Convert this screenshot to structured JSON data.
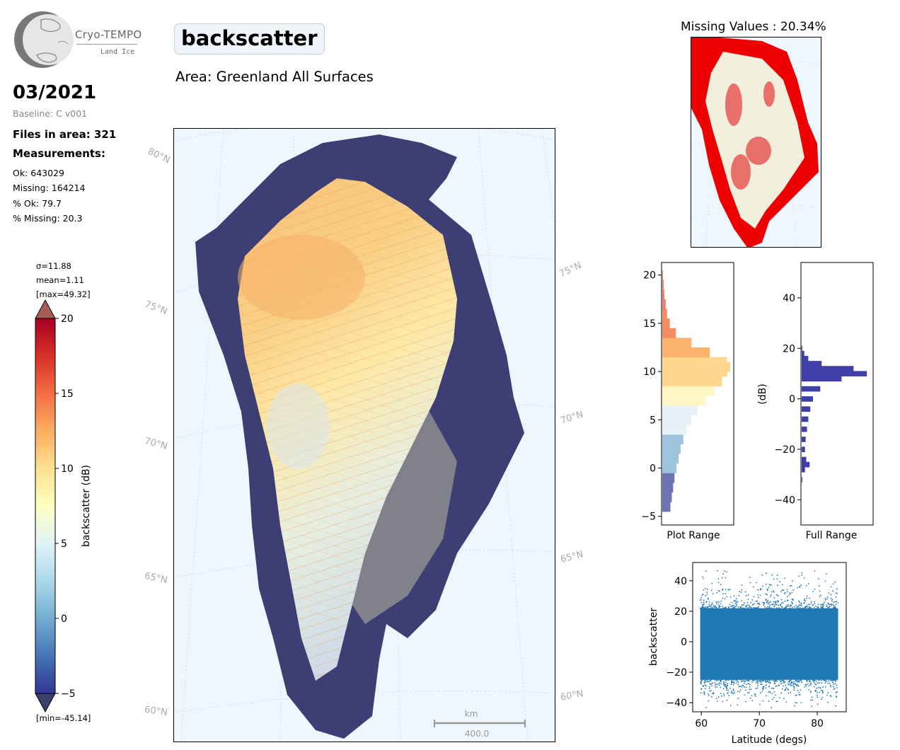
{
  "logo": {
    "title": "Cryo-TEMPO",
    "subtitle": "Land Ice"
  },
  "header": {
    "date": "03/2021",
    "baseline": "Baseline: C v001",
    "files": "Files in area: 321",
    "measurements_label": "Measurements:",
    "stats": [
      "Ok: 643029",
      "Missing: 164214",
      "% Ok: 79.7",
      "% Missing: 20.3"
    ],
    "title": "backscatter",
    "area": "Area: Greenland All Surfaces"
  },
  "colorbar": {
    "label": "backscatter (dB)",
    "stats": [
      "σ=11.88",
      "mean=1.11",
      "[max=49.32]"
    ],
    "min_text": "[min=-45.14]",
    "range": [
      -5,
      20
    ],
    "ticks": [
      "20",
      "15",
      "10",
      "5",
      "0",
      "−5"
    ],
    "colors": [
      "#313695",
      "#4575b4",
      "#74add1",
      "#abd9e9",
      "#e0f3f8",
      "#ffffbf",
      "#fee090",
      "#fdae61",
      "#f46d43",
      "#d73027",
      "#a50026"
    ]
  },
  "map": {
    "lat_labels_left": [
      "80°N",
      "75°N",
      "70°N",
      "65°N",
      "60°N"
    ],
    "lat_labels_right": [
      "75°N",
      "70°N",
      "65°N",
      "60°N"
    ],
    "scalebar_unit": "km",
    "scalebar_value": "400.0",
    "ocean_color": "#eef7fd",
    "land_color": "#8a8a88"
  },
  "missing_map": {
    "title": "Missing Values : 20.34%",
    "missing_color": "#ee0000",
    "land_color": "#f2efdc"
  },
  "chart_data": [
    {
      "type": "bar",
      "name": "plot-range-histogram",
      "orientation": "horizontal",
      "xlabel": "Plot Range",
      "ylabel": "",
      "ylim": [
        -5.9,
        21.3
      ],
      "yticks": [
        "20",
        "15",
        "10",
        "5",
        "0",
        "−5"
      ],
      "bins": [
        {
          "y": -4,
          "count": 0.12
        },
        {
          "y": -3,
          "count": 0.14
        },
        {
          "y": -2,
          "count": 0.16
        },
        {
          "y": -1,
          "count": 0.18
        },
        {
          "y": 0,
          "count": 0.21
        },
        {
          "y": 1,
          "count": 0.24
        },
        {
          "y": 2,
          "count": 0.27
        },
        {
          "y": 3,
          "count": 0.31
        },
        {
          "y": 4,
          "count": 0.36
        },
        {
          "y": 5,
          "count": 0.43
        },
        {
          "y": 6,
          "count": 0.52
        },
        {
          "y": 7,
          "count": 0.64
        },
        {
          "y": 8,
          "count": 0.77
        },
        {
          "y": 9,
          "count": 0.88
        },
        {
          "y": 10,
          "count": 0.96
        },
        {
          "y": 10.5,
          "count": 1.0
        },
        {
          "y": 11,
          "count": 0.95
        },
        {
          "y": 12,
          "count": 0.7
        },
        {
          "y": 13,
          "count": 0.43
        },
        {
          "y": 14,
          "count": 0.2
        },
        {
          "y": 15,
          "count": 0.11
        },
        {
          "y": 16,
          "count": 0.07
        },
        {
          "y": 17,
          "count": 0.05
        },
        {
          "y": 18,
          "count": 0.03
        },
        {
          "y": 19,
          "count": 0.02
        },
        {
          "y": 20,
          "count": 0.01
        }
      ]
    },
    {
      "type": "bar",
      "name": "full-range-histogram",
      "orientation": "horizontal",
      "xlabel": "Full Range",
      "ylabel": "(dB)",
      "ylim": [
        -50,
        54
      ],
      "yticks": [
        "40",
        "20",
        "0",
        "−20",
        "−40"
      ],
      "color": "#3f3fa8",
      "bins": [
        {
          "y": -32,
          "count": 0.01
        },
        {
          "y": -28,
          "count": 0.05
        },
        {
          "y": -26,
          "count": 0.12
        },
        {
          "y": -24,
          "count": 0.07
        },
        {
          "y": -20,
          "count": 0.05
        },
        {
          "y": -16,
          "count": 0.06
        },
        {
          "y": -12,
          "count": 0.08
        },
        {
          "y": -8,
          "count": 0.1
        },
        {
          "y": -4,
          "count": 0.13
        },
        {
          "y": 0,
          "count": 0.17
        },
        {
          "y": 4,
          "count": 0.28
        },
        {
          "y": 8,
          "count": 0.6
        },
        {
          "y": 10,
          "count": 0.98
        },
        {
          "y": 12,
          "count": 0.78
        },
        {
          "y": 14,
          "count": 0.3
        },
        {
          "y": 16,
          "count": 0.1
        },
        {
          "y": 18,
          "count": 0.04
        },
        {
          "y": 20,
          "count": 0.01
        }
      ]
    },
    {
      "type": "scatter",
      "name": "latitude-scatter",
      "xlabel": "Latitude (degs)",
      "ylabel": "backscatter",
      "xlim": [
        58.5,
        85
      ],
      "ylim": [
        -46,
        52
      ],
      "xticks": [
        "60",
        "70",
        "80"
      ],
      "yticks": [
        "40",
        "20",
        "0",
        "−20",
        "−40"
      ],
      "color": "#1f77b4",
      "x_range": [
        59.8,
        83.6
      ],
      "core_band": [
        -25,
        22
      ],
      "extremes": [
        -45,
        49
      ]
    }
  ]
}
